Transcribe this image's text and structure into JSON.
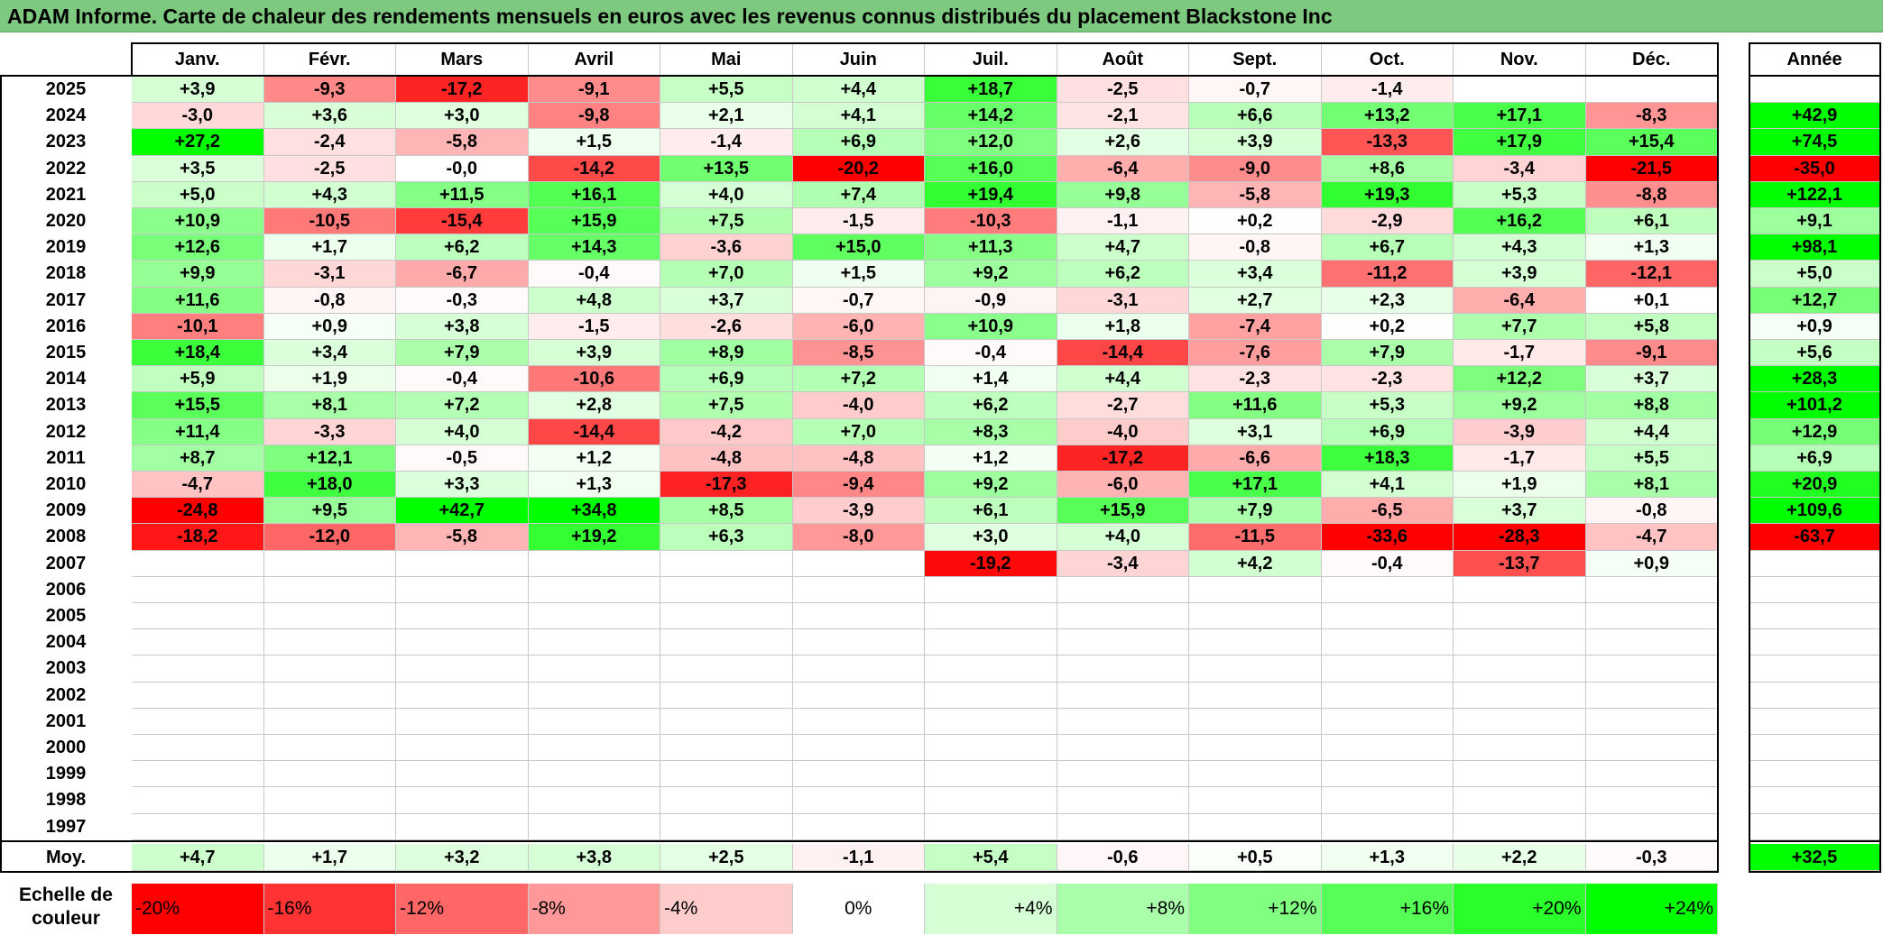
{
  "title": "ADAM Informe. Carte de chaleur des rendements mensuels en euros avec les revenus connus distribués du placement Blackstone Inc",
  "chart_data": {
    "type": "heatmap",
    "title": "ADAM Informe. Carte de chaleur des rendements mensuels en euros avec les revenus connus distribués du placement Blackstone Inc",
    "columns": [
      "Janv.",
      "Févr.",
      "Mars",
      "Avril",
      "Mai",
      "Juin",
      "Juil.",
      "Août",
      "Sept.",
      "Oct.",
      "Nov.",
      "Déc."
    ],
    "year_header": "Année",
    "rows": [
      {
        "year": "2025",
        "values": [
          3.9,
          -9.3,
          -17.2,
          -9.1,
          5.5,
          4.4,
          18.7,
          -2.5,
          -0.7,
          -1.4,
          null,
          null
        ],
        "annual": null
      },
      {
        "year": "2024",
        "values": [
          -3.0,
          3.6,
          3.0,
          -9.8,
          2.1,
          4.1,
          14.2,
          -2.1,
          6.6,
          13.2,
          17.1,
          -8.3
        ],
        "annual": 42.9
      },
      {
        "year": "2023",
        "values": [
          27.2,
          -2.4,
          -5.8,
          1.5,
          -1.4,
          6.9,
          12.0,
          2.6,
          3.9,
          -13.3,
          17.9,
          15.4
        ],
        "annual": 74.5
      },
      {
        "year": "2022",
        "values": [
          3.5,
          -2.5,
          -0.0,
          -14.2,
          13.5,
          -20.2,
          16.0,
          -6.4,
          -9.0,
          8.6,
          -3.4,
          -21.5
        ],
        "annual": -35.0
      },
      {
        "year": "2021",
        "values": [
          5.0,
          4.3,
          11.5,
          16.1,
          4.0,
          7.4,
          19.4,
          9.8,
          -5.8,
          19.3,
          5.3,
          -8.8
        ],
        "annual": 122.1
      },
      {
        "year": "2020",
        "values": [
          10.9,
          -10.5,
          -15.4,
          15.9,
          7.5,
          -1.5,
          -10.3,
          -1.1,
          0.2,
          -2.9,
          16.2,
          6.1
        ],
        "annual": 9.1
      },
      {
        "year": "2019",
        "values": [
          12.6,
          1.7,
          6.2,
          14.3,
          -3.6,
          15.0,
          11.3,
          4.7,
          -0.8,
          6.7,
          4.3,
          1.3
        ],
        "annual": 98.1
      },
      {
        "year": "2018",
        "values": [
          9.9,
          -3.1,
          -6.7,
          -0.4,
          7.0,
          1.5,
          9.2,
          6.2,
          3.4,
          -11.2,
          3.9,
          -12.1
        ],
        "annual": 5.0
      },
      {
        "year": "2017",
        "values": [
          11.6,
          -0.8,
          -0.3,
          4.8,
          3.7,
          -0.7,
          -0.9,
          -3.1,
          2.7,
          2.3,
          -6.4,
          0.1
        ],
        "annual": 12.7
      },
      {
        "year": "2016",
        "values": [
          -10.1,
          0.9,
          3.8,
          -1.5,
          -2.6,
          -6.0,
          10.9,
          1.8,
          -7.4,
          0.2,
          7.7,
          5.8
        ],
        "annual": 0.9
      },
      {
        "year": "2015",
        "values": [
          18.4,
          3.4,
          7.9,
          3.9,
          8.9,
          -8.5,
          -0.4,
          -14.4,
          -7.6,
          7.9,
          -1.7,
          -9.1
        ],
        "annual": 5.6
      },
      {
        "year": "2014",
        "values": [
          5.9,
          1.9,
          -0.4,
          -10.6,
          6.9,
          7.2,
          1.4,
          4.4,
          -2.3,
          -2.3,
          12.2,
          3.7
        ],
        "annual": 28.3
      },
      {
        "year": "2013",
        "values": [
          15.5,
          8.1,
          7.2,
          2.8,
          7.5,
          -4.0,
          6.2,
          -2.7,
          11.6,
          5.3,
          9.2,
          8.8
        ],
        "annual": 101.2
      },
      {
        "year": "2012",
        "values": [
          11.4,
          -3.3,
          4.0,
          -14.4,
          -4.2,
          7.0,
          8.3,
          -4.0,
          3.1,
          6.9,
          -3.9,
          4.4
        ],
        "annual": 12.9
      },
      {
        "year": "2011",
        "values": [
          8.7,
          12.1,
          -0.5,
          1.2,
          -4.8,
          -4.8,
          1.2,
          -17.2,
          -6.6,
          18.3,
          -1.7,
          5.5
        ],
        "annual": 6.9
      },
      {
        "year": "2010",
        "values": [
          -4.7,
          18.0,
          3.3,
          1.3,
          -17.3,
          -9.4,
          9.2,
          -6.0,
          17.1,
          4.1,
          1.9,
          8.1
        ],
        "annual": 20.9
      },
      {
        "year": "2009",
        "values": [
          -24.8,
          9.5,
          42.7,
          34.8,
          8.5,
          -3.9,
          6.1,
          15.9,
          7.9,
          -6.5,
          3.7,
          -0.8
        ],
        "annual": 109.6
      },
      {
        "year": "2008",
        "values": [
          -18.2,
          -12.0,
          -5.8,
          19.2,
          6.3,
          -8.0,
          3.0,
          4.0,
          -11.5,
          -33.6,
          -28.3,
          -4.7
        ],
        "annual": -63.7
      },
      {
        "year": "2007",
        "values": [
          null,
          null,
          null,
          null,
          null,
          null,
          -19.2,
          -3.4,
          4.2,
          -0.4,
          -13.7,
          0.9
        ],
        "annual": null
      },
      {
        "year": "2006",
        "values": [
          null,
          null,
          null,
          null,
          null,
          null,
          null,
          null,
          null,
          null,
          null,
          null
        ],
        "annual": null
      },
      {
        "year": "2005",
        "values": [
          null,
          null,
          null,
          null,
          null,
          null,
          null,
          null,
          null,
          null,
          null,
          null
        ],
        "annual": null
      },
      {
        "year": "2004",
        "values": [
          null,
          null,
          null,
          null,
          null,
          null,
          null,
          null,
          null,
          null,
          null,
          null
        ],
        "annual": null
      },
      {
        "year": "2003",
        "values": [
          null,
          null,
          null,
          null,
          null,
          null,
          null,
          null,
          null,
          null,
          null,
          null
        ],
        "annual": null
      },
      {
        "year": "2002",
        "values": [
          null,
          null,
          null,
          null,
          null,
          null,
          null,
          null,
          null,
          null,
          null,
          null
        ],
        "annual": null
      },
      {
        "year": "2001",
        "values": [
          null,
          null,
          null,
          null,
          null,
          null,
          null,
          null,
          null,
          null,
          null,
          null
        ],
        "annual": null
      },
      {
        "year": "2000",
        "values": [
          null,
          null,
          null,
          null,
          null,
          null,
          null,
          null,
          null,
          null,
          null,
          null
        ],
        "annual": null
      },
      {
        "year": "1999",
        "values": [
          null,
          null,
          null,
          null,
          null,
          null,
          null,
          null,
          null,
          null,
          null,
          null
        ],
        "annual": null
      },
      {
        "year": "1998",
        "values": [
          null,
          null,
          null,
          null,
          null,
          null,
          null,
          null,
          null,
          null,
          null,
          null
        ],
        "annual": null
      },
      {
        "year": "1997",
        "values": [
          null,
          null,
          null,
          null,
          null,
          null,
          null,
          null,
          null,
          null,
          null,
          null
        ],
        "annual": null
      }
    ],
    "average": {
      "label": "Moy.",
      "values": [
        4.7,
        1.7,
        3.2,
        3.8,
        2.5,
        -1.1,
        5.4,
        -0.6,
        0.5,
        1.3,
        2.2,
        -0.3
      ],
      "annual": 32.5
    },
    "color_scale": {
      "label": "Echelle de couleur",
      "steps": [
        -20,
        -16,
        -12,
        -8,
        -4,
        0,
        4,
        8,
        12,
        16,
        20,
        24
      ],
      "step_labels": [
        "-20%",
        "-16%",
        "-12%",
        "-8%",
        "-4%",
        "0%",
        "+4%",
        "+8%",
        "+12%",
        "+16%",
        "+20%",
        "+24%"
      ],
      "negative_color": "#ff0000",
      "zero_color": "#ffffff",
      "positive_color": "#00ff00"
    }
  }
}
